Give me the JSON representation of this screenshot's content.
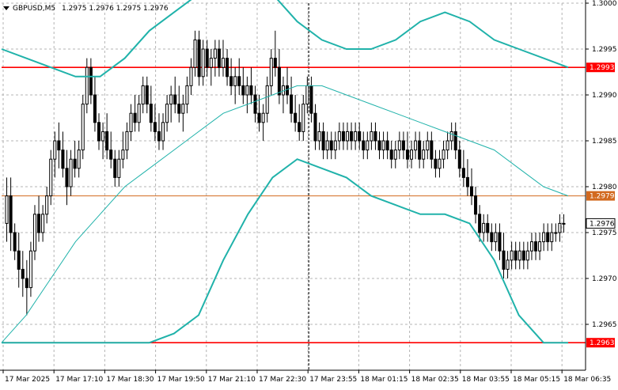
{
  "header": {
    "symbol_timeframe": "GBPUSD,M5",
    "ohlc": "1.2975 1.2976 1.2975 1.2976"
  },
  "colors": {
    "background": "#ffffff",
    "candle": "#000000",
    "envelope": "#20b2aa",
    "moving_average": "#20b2aa",
    "support_resistance": "#ff0000",
    "pivot_line": "#d2691e",
    "bid_tag": "#ffffff"
  },
  "chart_data": {
    "type": "candlestick",
    "symbol": "GBPUSD",
    "timeframe": "M5",
    "ylim": [
      1.296,
      1.3
    ],
    "y_ticks": [
      "1.2965",
      "1.2970",
      "1.2975",
      "1.2980",
      "1.2985",
      "1.2990",
      "1.2995",
      "1.3000"
    ],
    "x_ticks": [
      "17 Mar 2025",
      "17 Mar 17:10",
      "17 Mar 18:30",
      "17 Mar 19:50",
      "17 Mar 21:10",
      "17 Mar 22:30",
      "17 Mar 23:55",
      "18 Mar 01:15",
      "18 Mar 02:35",
      "18 Mar 03:55",
      "18 Mar 05:15",
      "18 Mar 06:35"
    ],
    "period_separator_x": "17 Mar 23:55",
    "horizontal_levels": [
      {
        "label": "1.2993",
        "value": 1.2993,
        "color": "#ff0000"
      },
      {
        "label": "1.2979",
        "value": 1.2979,
        "color": "#d2691e"
      },
      {
        "label": "1.2963",
        "value": 1.2963,
        "color": "#ff0000"
      }
    ],
    "current_price": {
      "label": "1.2976",
      "value": 1.2976
    },
    "candles": [
      [
        1.2976,
        1.2981,
        1.2974,
        1.2979
      ],
      [
        1.2979,
        1.2981,
        1.2973,
        1.2975
      ],
      [
        1.2975,
        1.2976,
        1.2972,
        1.2973
      ],
      [
        1.2973,
        1.2975,
        1.2969,
        1.2971
      ],
      [
        1.2971,
        1.2973,
        1.2968,
        1.297
      ],
      [
        1.297,
        1.2972,
        1.2966,
        1.2969
      ],
      [
        1.2969,
        1.2974,
        1.2968,
        1.2973
      ],
      [
        1.2973,
        1.2978,
        1.2972,
        1.2977
      ],
      [
        1.2977,
        1.2979,
        1.2974,
        1.2975
      ],
      [
        1.2975,
        1.2978,
        1.2974,
        1.2977
      ],
      [
        1.2977,
        1.298,
        1.2976,
        1.2979
      ],
      [
        1.2979,
        1.2984,
        1.2978,
        1.2983
      ],
      [
        1.2983,
        1.2986,
        1.2981,
        1.2985
      ],
      [
        1.2985,
        1.2987,
        1.2982,
        1.2984
      ],
      [
        1.2984,
        1.2986,
        1.2981,
        1.2982
      ],
      [
        1.2982,
        1.2984,
        1.2978,
        1.298
      ],
      [
        1.298,
        1.2984,
        1.2979,
        1.2983
      ],
      [
        1.2983,
        1.2985,
        1.2981,
        1.2982
      ],
      [
        1.2982,
        1.2985,
        1.2981,
        1.2984
      ],
      [
        1.2984,
        1.299,
        1.2983,
        1.2989
      ],
      [
        1.2989,
        1.2994,
        1.2988,
        1.2993
      ],
      [
        1.2993,
        1.2994,
        1.2989,
        1.299
      ],
      [
        1.299,
        1.2992,
        1.2986,
        1.2987
      ],
      [
        1.2987,
        1.2988,
        1.2984,
        1.2985
      ],
      [
        1.2985,
        1.2987,
        1.2983,
        1.2986
      ],
      [
        1.2986,
        1.2988,
        1.2983,
        1.2984
      ],
      [
        1.2984,
        1.2986,
        1.2982,
        1.2983
      ],
      [
        1.2983,
        1.2984,
        1.298,
        1.2981
      ],
      [
        1.2981,
        1.2984,
        1.298,
        1.2983
      ],
      [
        1.2983,
        1.2986,
        1.2982,
        1.2984
      ],
      [
        1.2984,
        1.2987,
        1.2983,
        1.2986
      ],
      [
        1.2986,
        1.2989,
        1.2985,
        1.2988
      ],
      [
        1.2988,
        1.299,
        1.2986,
        1.2987
      ],
      [
        1.2987,
        1.299,
        1.2986,
        1.2989
      ],
      [
        1.2989,
        1.2992,
        1.2988,
        1.2991
      ],
      [
        1.2991,
        1.2992,
        1.2988,
        1.2989
      ],
      [
        1.2989,
        1.2991,
        1.2986,
        1.2987
      ],
      [
        1.2987,
        1.2989,
        1.2985,
        1.2986
      ],
      [
        1.2986,
        1.2988,
        1.2984,
        1.2985
      ],
      [
        1.2985,
        1.2988,
        1.2984,
        1.2987
      ],
      [
        1.2987,
        1.299,
        1.2986,
        1.2989
      ],
      [
        1.2989,
        1.2991,
        1.2987,
        1.299
      ],
      [
        1.299,
        1.2992,
        1.2988,
        1.2989
      ],
      [
        1.2989,
        1.2991,
        1.2987,
        1.2988
      ],
      [
        1.2988,
        1.299,
        1.2986,
        1.2989
      ],
      [
        1.2989,
        1.2992,
        1.2988,
        1.2991
      ],
      [
        1.2991,
        1.2994,
        1.299,
        1.2993
      ],
      [
        1.2993,
        1.2997,
        1.2992,
        1.2996
      ],
      [
        1.2996,
        1.2997,
        1.2991,
        1.2992
      ],
      [
        1.2992,
        1.2996,
        1.2991,
        1.2995
      ],
      [
        1.2995,
        1.2996,
        1.2992,
        1.2993
      ],
      [
        1.2993,
        1.2995,
        1.2991,
        1.2994
      ],
      [
        1.2994,
        1.2996,
        1.2992,
        1.2995
      ],
      [
        1.2995,
        1.2996,
        1.2992,
        1.2993
      ],
      [
        1.2993,
        1.2996,
        1.2992,
        1.2994
      ],
      [
        1.2994,
        1.2995,
        1.2991,
        1.2992
      ],
      [
        1.2992,
        1.2994,
        1.299,
        1.2991
      ],
      [
        1.2991,
        1.2993,
        1.2989,
        1.2992
      ],
      [
        1.2992,
        1.2994,
        1.299,
        1.2991
      ],
      [
        1.2991,
        1.2993,
        1.2989,
        1.299
      ],
      [
        1.299,
        1.2992,
        1.2988,
        1.2991
      ],
      [
        1.2991,
        1.2993,
        1.2989,
        1.299
      ],
      [
        1.299,
        1.2991,
        1.2987,
        1.2988
      ],
      [
        1.2988,
        1.299,
        1.2986,
        1.2987
      ],
      [
        1.2987,
        1.2989,
        1.2985,
        1.2988
      ],
      [
        1.2988,
        1.2992,
        1.2987,
        1.2991
      ],
      [
        1.2991,
        1.2995,
        1.299,
        1.2994
      ],
      [
        1.2994,
        1.2997,
        1.2992,
        1.2993
      ],
      [
        1.2993,
        1.2995,
        1.2989,
        1.299
      ],
      [
        1.299,
        1.2992,
        1.2988,
        1.2991
      ],
      [
        1.2991,
        1.2993,
        1.2989,
        1.299
      ],
      [
        1.299,
        1.2992,
        1.2987,
        1.2988
      ],
      [
        1.2988,
        1.299,
        1.2986,
        1.2987
      ],
      [
        1.2987,
        1.2989,
        1.2985,
        1.2986
      ],
      [
        1.2986,
        1.299,
        1.2985,
        1.2989
      ],
      [
        1.2989,
        1.2992,
        1.2988,
        1.2991
      ],
      [
        1.2991,
        1.2992,
        1.2987,
        1.2988
      ],
      [
        1.2988,
        1.2989,
        1.2984,
        1.2985
      ],
      [
        1.2985,
        1.2987,
        1.2984,
        1.2986
      ],
      [
        1.2986,
        1.2987,
        1.2983,
        1.2984
      ],
      [
        1.2984,
        1.2986,
        1.2983,
        1.2985
      ],
      [
        1.2985,
        1.2986,
        1.2983,
        1.2984
      ],
      [
        1.2984,
        1.2986,
        1.2983,
        1.2985
      ],
      [
        1.2985,
        1.2987,
        1.2984,
        1.2986
      ],
      [
        1.2986,
        1.2987,
        1.2984,
        1.2985
      ],
      [
        1.2985,
        1.2987,
        1.2984,
        1.2986
      ],
      [
        1.2986,
        1.2987,
        1.2984,
        1.2985
      ],
      [
        1.2985,
        1.2987,
        1.2984,
        1.2986
      ],
      [
        1.2986,
        1.2987,
        1.2984,
        1.2985
      ],
      [
        1.2985,
        1.2986,
        1.2983,
        1.2984
      ],
      [
        1.2984,
        1.2986,
        1.2983,
        1.2985
      ],
      [
        1.2985,
        1.2987,
        1.2984,
        1.2986
      ],
      [
        1.2986,
        1.2987,
        1.2984,
        1.2985
      ],
      [
        1.2985,
        1.2986,
        1.2983,
        1.2984
      ],
      [
        1.2984,
        1.2986,
        1.2983,
        1.2985
      ],
      [
        1.2985,
        1.2986,
        1.2983,
        1.2984
      ],
      [
        1.2984,
        1.2985,
        1.2982,
        1.2983
      ],
      [
        1.2983,
        1.2985,
        1.2982,
        1.2984
      ],
      [
        1.2984,
        1.2986,
        1.2983,
        1.2985
      ],
      [
        1.2985,
        1.2986,
        1.2983,
        1.2984
      ],
      [
        1.2984,
        1.2986,
        1.2982,
        1.2983
      ],
      [
        1.2983,
        1.2985,
        1.2982,
        1.2984
      ],
      [
        1.2984,
        1.2986,
        1.2983,
        1.2985
      ],
      [
        1.2985,
        1.2986,
        1.2982,
        1.2983
      ],
      [
        1.2983,
        1.2985,
        1.2982,
        1.2984
      ],
      [
        1.2984,
        1.2986,
        1.2983,
        1.2985
      ],
      [
        1.2985,
        1.2986,
        1.2982,
        1.2983
      ],
      [
        1.2983,
        1.2984,
        1.2981,
        1.2982
      ],
      [
        1.2982,
        1.2984,
        1.2981,
        1.2983
      ],
      [
        1.2983,
        1.2985,
        1.2982,
        1.2984
      ],
      [
        1.2984,
        1.2986,
        1.2983,
        1.2985
      ],
      [
        1.2985,
        1.2987,
        1.2984,
        1.2986
      ],
      [
        1.2986,
        1.2987,
        1.2983,
        1.2984
      ],
      [
        1.2984,
        1.2985,
        1.2981,
        1.2982
      ],
      [
        1.2982,
        1.2984,
        1.298,
        1.2981
      ],
      [
        1.2981,
        1.2983,
        1.2979,
        1.298
      ],
      [
        1.298,
        1.2982,
        1.2978,
        1.2979
      ],
      [
        1.2979,
        1.298,
        1.2976,
        1.2977
      ],
      [
        1.2977,
        1.2978,
        1.2974,
        1.2975
      ],
      [
        1.2975,
        1.2977,
        1.2974,
        1.2976
      ],
      [
        1.2976,
        1.2977,
        1.2974,
        1.2975
      ],
      [
        1.2975,
        1.2976,
        1.2973,
        1.2974
      ],
      [
        1.2974,
        1.2976,
        1.2973,
        1.2975
      ],
      [
        1.2975,
        1.2976,
        1.2972,
        1.2973
      ],
      [
        1.2973,
        1.2975,
        1.297,
        1.2971
      ],
      [
        1.2971,
        1.2973,
        1.297,
        1.2972
      ],
      [
        1.2972,
        1.2974,
        1.2971,
        1.2973
      ],
      [
        1.2973,
        1.2974,
        1.2971,
        1.2972
      ],
      [
        1.2972,
        1.2974,
        1.2971,
        1.2973
      ],
      [
        1.2973,
        1.2974,
        1.2971,
        1.2972
      ],
      [
        1.2972,
        1.2974,
        1.2971,
        1.2973
      ],
      [
        1.2973,
        1.2975,
        1.2972,
        1.2974
      ],
      [
        1.2974,
        1.2975,
        1.2972,
        1.2973
      ],
      [
        1.2973,
        1.2975,
        1.2972,
        1.2974
      ],
      [
        1.2974,
        1.2976,
        1.2973,
        1.2975
      ],
      [
        1.2975,
        1.2976,
        1.2973,
        1.2974
      ],
      [
        1.2974,
        1.2976,
        1.2973,
        1.2975
      ],
      [
        1.2975,
        1.2976,
        1.2974,
        1.2975
      ],
      [
        1.2975,
        1.2977,
        1.2974,
        1.2976
      ],
      [
        1.2976,
        1.2977,
        1.2975,
        1.2976
      ]
    ],
    "envelope_upper": [
      1.2995,
      1.2994,
      1.2993,
      1.2992,
      1.2992,
      1.2994,
      1.2997,
      1.2999,
      1.3001,
      1.3003,
      1.3002,
      1.3001,
      1.2998,
      1.2996,
      1.2995,
      1.2995,
      1.2996,
      1.2998,
      1.2999,
      1.2998,
      1.2996,
      1.2995,
      1.2994,
      1.2993
    ],
    "envelope_lower": [
      1.2963,
      1.2963,
      1.2963,
      1.2963,
      1.2963,
      1.2963,
      1.2963,
      1.2964,
      1.2966,
      1.2972,
      1.2977,
      1.2981,
      1.2983,
      1.2982,
      1.2981,
      1.2979,
      1.2978,
      1.2977,
      1.2977,
      1.2976,
      1.2972,
      1.2966,
      1.2963,
      1.2963
    ],
    "moving_average": [
      1.2963,
      1.2966,
      1.297,
      1.2974,
      1.2977,
      1.298,
      1.2982,
      1.2984,
      1.2986,
      1.2988,
      1.2989,
      1.299,
      1.2991,
      1.2991,
      1.299,
      1.2989,
      1.2988,
      1.2987,
      1.2986,
      1.2985,
      1.2984,
      1.2982,
      1.298,
      1.2979
    ]
  }
}
